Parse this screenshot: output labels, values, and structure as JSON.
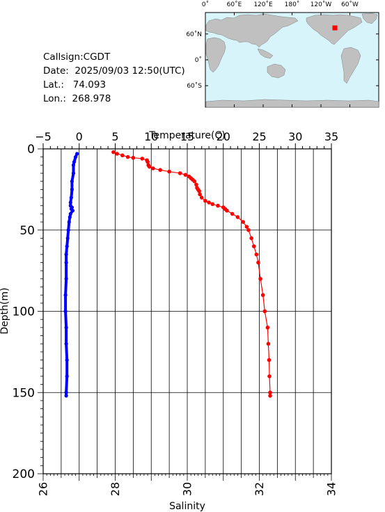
{
  "info": {
    "callsign": "Callsign:CGDT",
    "date": "Date:  2025/09/03 12:50(UTC)",
    "lat": "Lat.:   74.093",
    "lon": "Lon.:  268.978"
  },
  "map": {
    "lon_labels": [
      "0˚",
      "60˚E",
      "120˚E",
      "180˚",
      "120˚W",
      "60˚W"
    ],
    "lat_labels": [
      "60˚N",
      "0˚",
      "60˚S"
    ],
    "ocean_color": "#d8f4fb",
    "land_color": "#c0c0c0",
    "marker": {
      "lat": 74.093,
      "lon": 268.978,
      "color": "#ff0000"
    }
  },
  "chart_data": {
    "type": "line",
    "x_top_label": "Temperature(C)",
    "x_bottom_label": "Salinity",
    "ylabel": "Depth(m)",
    "temperature_lim": [
      -5,
      35
    ],
    "temperature_ticks": [
      "−5",
      "0",
      "5",
      "10",
      "15",
      "20",
      "25",
      "30",
      "35"
    ],
    "salinity_lim": [
      26,
      34
    ],
    "salinity_ticks": [
      "26",
      "28",
      "30",
      "32",
      "34"
    ],
    "ylim": [
      0,
      200
    ],
    "depth_ticks": [
      "0",
      "50",
      "100",
      "150",
      "200"
    ],
    "grid": true,
    "series": [
      {
        "quantity": "temperature",
        "color": "#0000ff",
        "depth": [
          3,
          5,
          8,
          10,
          15,
          20,
          25,
          30,
          33,
          35,
          36,
          37,
          38,
          40,
          42,
          45,
          50,
          55,
          60,
          65,
          70,
          80,
          90,
          100,
          110,
          120,
          130,
          140,
          150,
          152
        ],
        "values": [
          -0.3,
          -0.5,
          -0.7,
          -0.8,
          -0.8,
          -1.0,
          -1.0,
          -1.1,
          -1.2,
          -1.2,
          -1.0,
          -1.1,
          -0.9,
          -1.2,
          -1.3,
          -1.4,
          -1.5,
          -1.6,
          -1.7,
          -1.8,
          -1.8,
          -1.8,
          -1.9,
          -1.9,
          -1.8,
          -1.8,
          -1.7,
          -1.7,
          -1.8,
          -1.8
        ]
      },
      {
        "quantity": "salinity",
        "color": "#ff0000",
        "depth": [
          2,
          3,
          4,
          5,
          5.5,
          6,
          7,
          8,
          10,
          11,
          12,
          13,
          14,
          15,
          16,
          17,
          18,
          19,
          20,
          22,
          24,
          25,
          26,
          28,
          30,
          32,
          33,
          34,
          35,
          36,
          37,
          38,
          40,
          42,
          45,
          48,
          50,
          55,
          60,
          65,
          70,
          80,
          90,
          100,
          110,
          120,
          130,
          140,
          150,
          152
        ],
        "values": [
          27.95,
          28.05,
          28.2,
          28.35,
          28.5,
          28.75,
          28.88,
          28.9,
          28.92,
          28.95,
          29.05,
          29.25,
          29.5,
          29.8,
          29.95,
          30.05,
          30.1,
          30.15,
          30.2,
          30.25,
          30.27,
          30.3,
          30.33,
          30.35,
          30.4,
          30.5,
          30.6,
          30.7,
          30.85,
          31.0,
          31.05,
          31.1,
          31.25,
          31.4,
          31.55,
          31.65,
          31.7,
          31.78,
          31.85,
          31.92,
          31.97,
          32.03,
          32.1,
          32.15,
          32.23,
          32.25,
          32.27,
          32.28,
          32.3,
          32.3
        ]
      }
    ]
  }
}
